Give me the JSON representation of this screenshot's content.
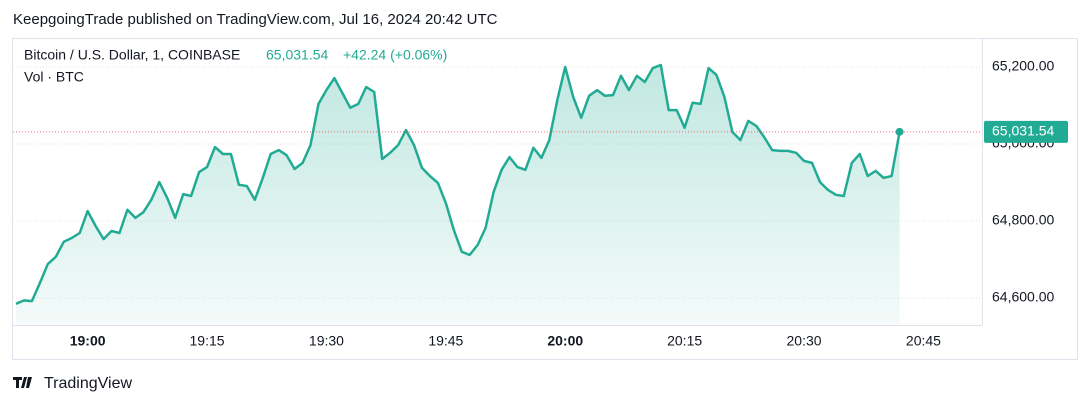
{
  "header": {
    "text": "KeepgoingTrade published on TradingView.com, Jul 16, 2024 20:42 UTC"
  },
  "footer": {
    "brand": "TradingView"
  },
  "chart_data": {
    "type": "area",
    "legend": {
      "symbol": "Bitcoin / U.S. Dollar, 1, COINBASE",
      "price": "65,031.54",
      "change": "+42.24 (+0.06%)",
      "volume": "Vol · BTC"
    },
    "last_price_label": "65,031.54",
    "color": "#22ab94",
    "categories": [
      "18:51",
      "18:52",
      "18:53",
      "18:54",
      "18:55",
      "18:56",
      "18:57",
      "18:58",
      "18:59",
      "19:00",
      "19:01",
      "19:02",
      "19:03",
      "19:04",
      "19:05",
      "19:06",
      "19:07",
      "19:08",
      "19:09",
      "19:10",
      "19:11",
      "19:12",
      "19:13",
      "19:14",
      "19:15",
      "19:16",
      "19:17",
      "19:18",
      "19:19",
      "19:20",
      "19:21",
      "19:22",
      "19:23",
      "19:24",
      "19:25",
      "19:26",
      "19:27",
      "19:28",
      "19:29",
      "19:30",
      "19:31",
      "19:32",
      "19:33",
      "19:34",
      "19:35",
      "19:36",
      "19:37",
      "19:38",
      "19:39",
      "19:40",
      "19:41",
      "19:42",
      "19:43",
      "19:44",
      "19:45",
      "19:46",
      "19:47",
      "19:48",
      "19:49",
      "19:50",
      "19:51",
      "19:52",
      "19:53",
      "19:54",
      "19:55",
      "19:56",
      "19:57",
      "19:58",
      "19:59",
      "20:00",
      "20:01",
      "20:02",
      "20:03",
      "20:04",
      "20:05",
      "20:06",
      "20:07",
      "20:08",
      "20:09",
      "20:10",
      "20:11",
      "20:12",
      "20:13",
      "20:14",
      "20:15",
      "20:16",
      "20:17",
      "20:18",
      "20:19",
      "20:20",
      "20:21",
      "20:22",
      "20:23",
      "20:24",
      "20:25",
      "20:26",
      "20:27",
      "20:28",
      "20:29",
      "20:30",
      "20:31",
      "20:32",
      "20:33",
      "20:34",
      "20:35",
      "20:36",
      "20:37",
      "20:38",
      "20:39",
      "20:40",
      "20:41",
      "20:42"
    ],
    "values": [
      64585,
      64594,
      64592,
      64639,
      64688,
      64707,
      64746,
      64756,
      64769,
      64826,
      64787,
      64753,
      64774,
      64769,
      64829,
      64808,
      64823,
      64855,
      64901,
      64860,
      64808,
      64870,
      64865,
      64927,
      64940,
      64992,
      64974,
      64974,
      64894,
      64891,
      64855,
      64912,
      64974,
      64984,
      64971,
      64935,
      64951,
      64997,
      65104,
      65140,
      65171,
      65132,
      65094,
      65104,
      65148,
      65135,
      64961,
      64977,
      64997,
      65036,
      64997,
      64938,
      64917,
      64899,
      64847,
      64777,
      64720,
      64712,
      64738,
      64782,
      64875,
      64933,
      64966,
      64940,
      64933,
      64990,
      64964,
      65010,
      65114,
      65200,
      65122,
      65068,
      65125,
      65140,
      65125,
      65127,
      65177,
      65140,
      65177,
      65161,
      65197,
      65205,
      65088,
      65088,
      65042,
      65107,
      65104,
      65197,
      65179,
      65122,
      65031,
      65010,
      65060,
      65047,
      65018,
      64984,
      64982,
      64982,
      64977,
      64956,
      64951,
      64901,
      64881,
      64868,
      64865,
      64951,
      64974,
      64917,
      64930,
      64912,
      64917,
      65031.54
    ],
    "xticks": [
      "19:00",
      "19:15",
      "19:30",
      "19:45",
      "20:00",
      "20:15",
      "20:30",
      "20:45"
    ],
    "ylim": [
      64530,
      65270
    ],
    "yticks": [
      {
        "value": 64600,
        "label": "64,600.00"
      },
      {
        "value": 64800,
        "label": "64,800.00"
      },
      {
        "value": 65000,
        "label": "65,000.00"
      },
      {
        "value": 65200,
        "label": "65,200.00"
      }
    ],
    "grid": true
  }
}
